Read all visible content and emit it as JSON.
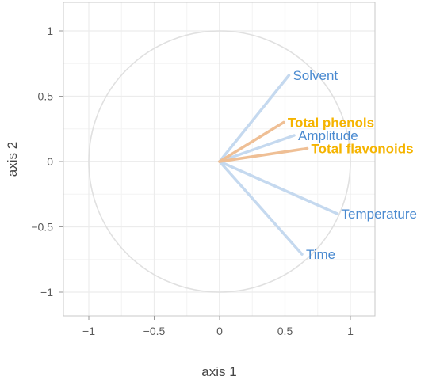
{
  "chart_data": {
    "type": "scatter",
    "subtype": "correlation-circle",
    "xlabel": "axis 1",
    "ylabel": "axis 2",
    "xlim": [
      -1.2,
      1.2
    ],
    "ylim": [
      -1.2,
      1.2
    ],
    "x_ticks": [
      -1,
      -0.5,
      0,
      0.5,
      1
    ],
    "y_ticks": [
      -1,
      -0.5,
      0,
      0.5,
      1
    ],
    "x_tick_labels": [
      "−1",
      "−0.5",
      "0",
      "0.5",
      "1"
    ],
    "y_tick_labels": [
      "−1",
      "−0.5",
      "0",
      "0.5",
      "1"
    ],
    "grid": true,
    "unit_circle": true,
    "colors": {
      "active": "#4a8ad0",
      "active_line": "#c5d9ef",
      "supplementary": "#f5b400",
      "supplementary_line": "#efbf95",
      "circle": "#e0e0e0",
      "grid": "#ececec",
      "frame": "#c8c8c8"
    },
    "variables": [
      {
        "name": "Solvent",
        "x": 0.53,
        "y": 0.66,
        "group": "active"
      },
      {
        "name": "Amplitude",
        "x": 0.57,
        "y": 0.2,
        "group": "active"
      },
      {
        "name": "Temperature",
        "x": 0.9,
        "y": -0.4,
        "group": "active"
      },
      {
        "name": "Time",
        "x": 0.63,
        "y": -0.71,
        "group": "active"
      },
      {
        "name": "Total phenols",
        "x": 0.49,
        "y": 0.3,
        "group": "supplementary"
      },
      {
        "name": "Total flavonoids",
        "x": 0.67,
        "y": 0.1,
        "group": "supplementary"
      }
    ]
  }
}
